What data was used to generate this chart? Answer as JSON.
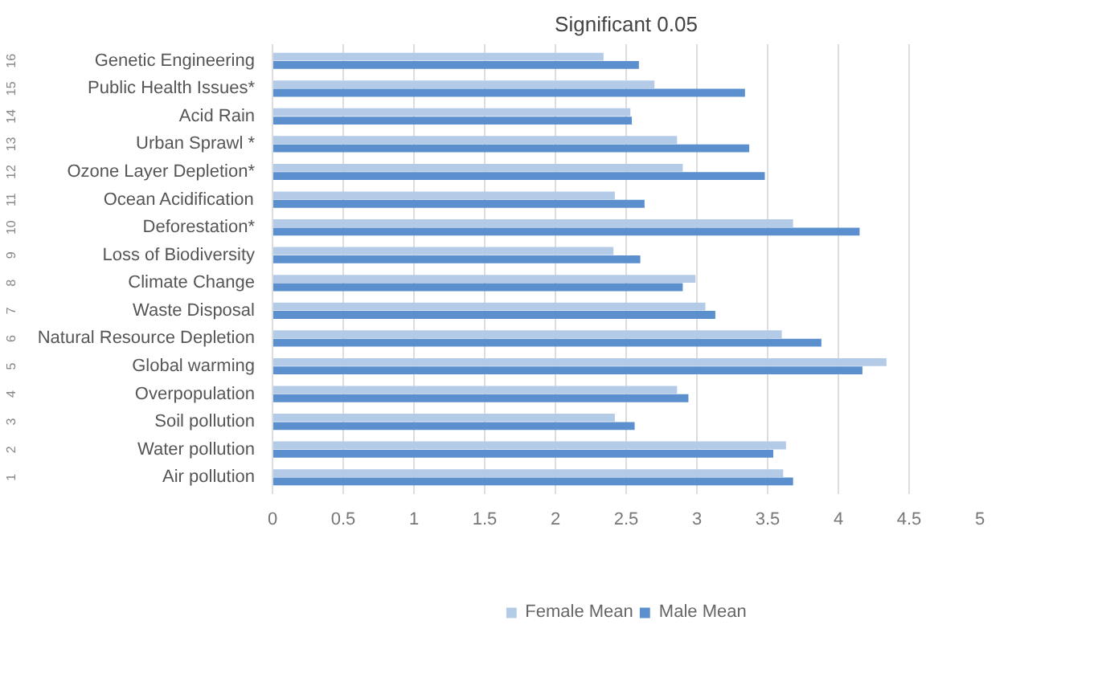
{
  "chart_data": {
    "type": "bar",
    "orientation": "horizontal",
    "title": "Significant 0.05",
    "categories": [
      "Genetic Engineering",
      "Public Health Issues*",
      "Acid Rain",
      "Urban Sprawl *",
      "Ozone Layer Depletion*",
      "Ocean Acidification",
      "Deforestation*",
      "Loss of Biodiversity",
      "Climate Change",
      "Waste Disposal",
      "Natural Resource Depletion",
      "Global warming",
      "Overpopulation",
      "Soil pollution",
      "Water pollution",
      "Air pollution"
    ],
    "series": [
      {
        "name": "Female Mean",
        "color": "#b4cbe8",
        "values": [
          2.34,
          2.7,
          2.53,
          2.86,
          2.9,
          2.42,
          3.68,
          2.41,
          2.99,
          3.06,
          3.6,
          4.34,
          2.86,
          2.42,
          3.63,
          3.61
        ]
      },
      {
        "name": "Male Mean",
        "color": "#5b8fce",
        "values": [
          2.59,
          3.34,
          2.54,
          3.37,
          3.48,
          2.63,
          4.15,
          2.6,
          2.9,
          3.13,
          3.88,
          4.17,
          2.94,
          2.56,
          3.54,
          3.68
        ]
      }
    ],
    "annotations": [
      "16",
      "15",
      "14",
      "13",
      "12",
      "11",
      "10",
      "9",
      "8",
      "7",
      "6",
      "5",
      "4",
      "3",
      "2",
      "1"
    ],
    "xlim": [
      0,
      5
    ],
    "xticks": [
      0,
      0.5,
      1,
      1.5,
      2,
      2.5,
      3,
      3.5,
      4,
      4.5,
      5
    ],
    "grid": "x",
    "legend": "bottom"
  }
}
